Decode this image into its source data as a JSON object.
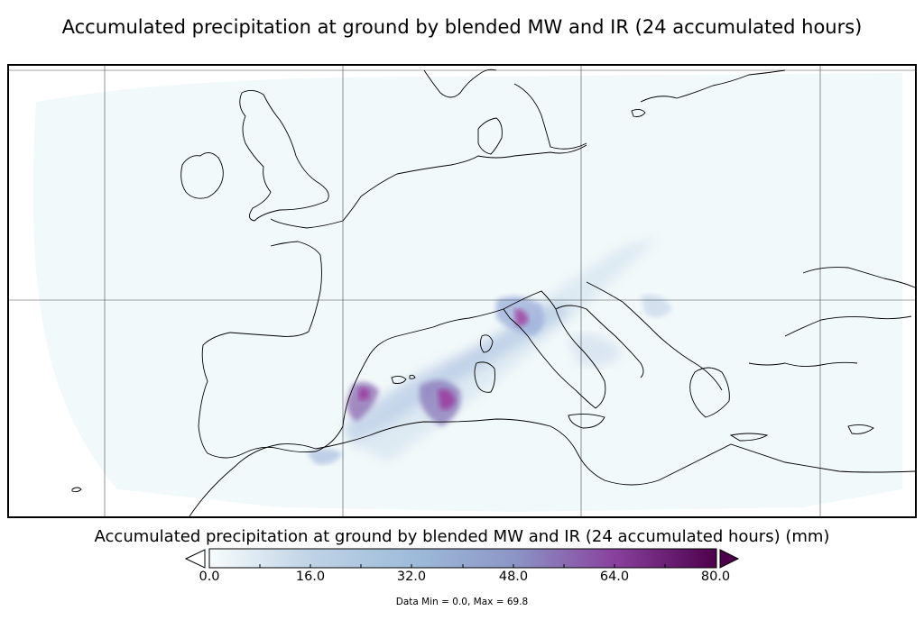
{
  "title": "Accumulated precipitation at ground by blended MW and IR (24 accumulated hours)",
  "map": {
    "colors": {
      "land_border": "#000000",
      "gridline": "#000000",
      "background": "#ffffff",
      "low_precip": "#eef6f8",
      "mid_precip": "#9fb9dc",
      "high_precip": "#9b3b9e"
    }
  },
  "colorbar": {
    "label": "Accumulated precipitation at ground by blended MW and IR (24 accumulated hours) (mm)",
    "min": 0.0,
    "max": 80.0,
    "ticks": [
      "0.0",
      "16.0",
      "32.0",
      "48.0",
      "64.0",
      "80.0"
    ],
    "stops": [
      "#f7fcfd",
      "#bfd3e6",
      "#8c96c6",
      "#8c6bb1",
      "#88419d",
      "#4d004b"
    ],
    "extend": "both"
  },
  "data_minmax": "Data Min = 0.0, Max = 69.8"
}
